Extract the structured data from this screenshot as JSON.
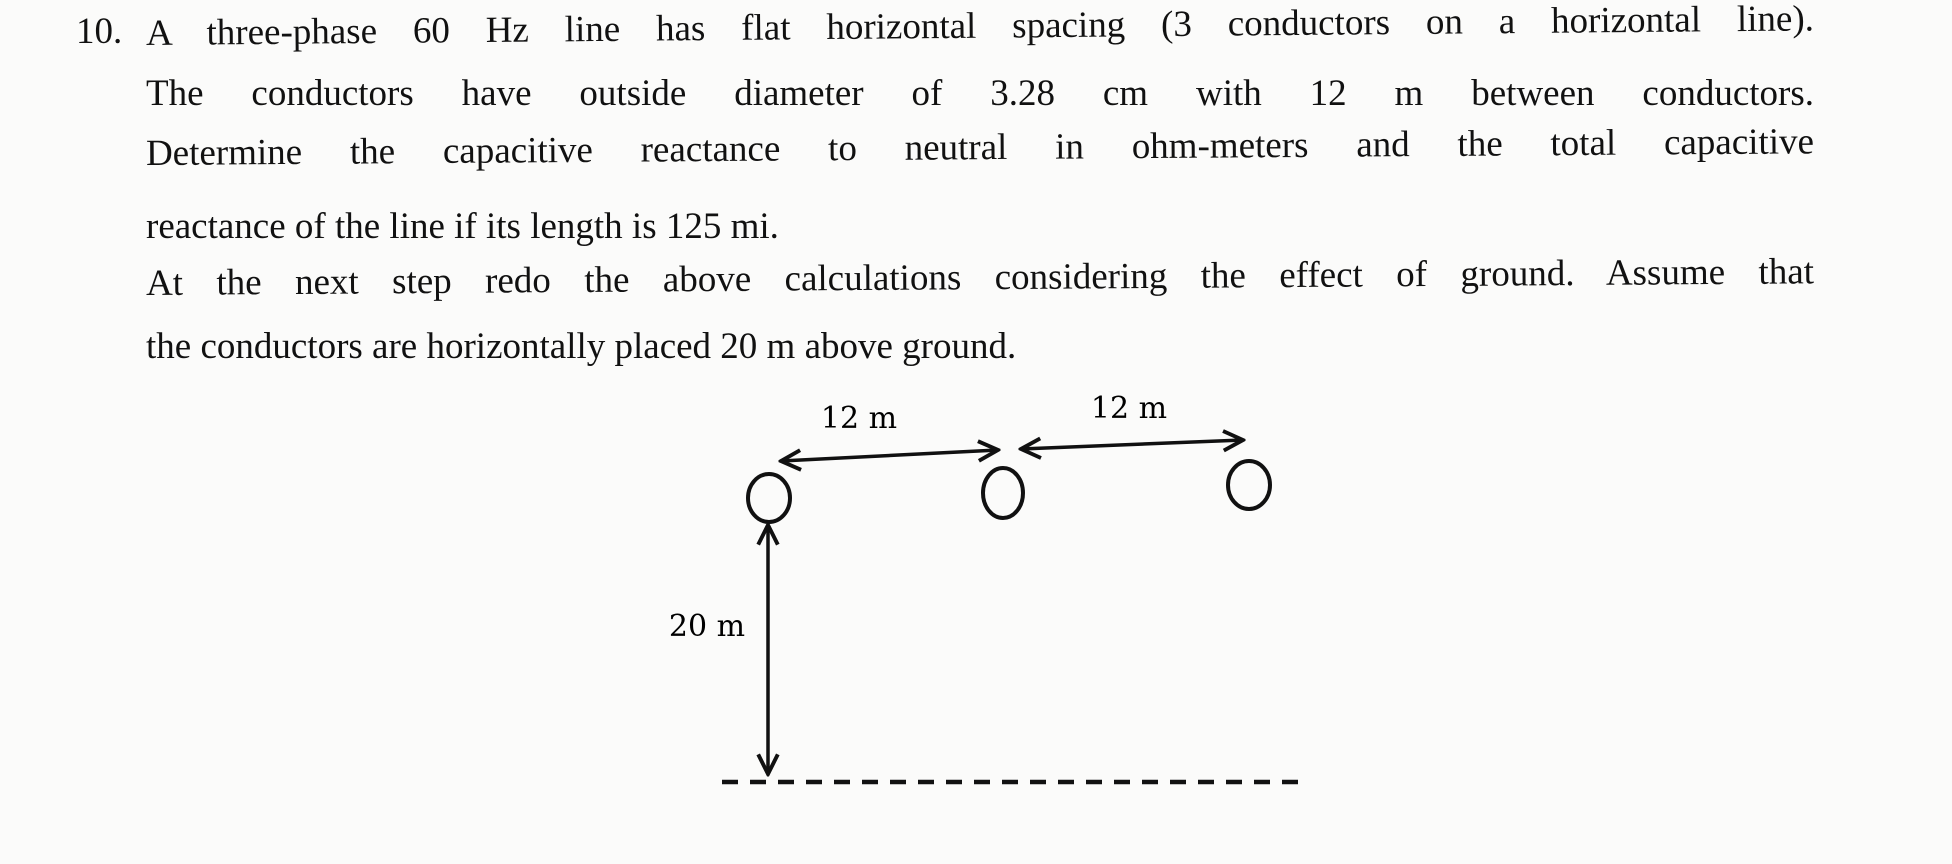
{
  "problem": {
    "number": "10.",
    "lines": [
      "A three-phase 60 Hz line has flat horizontal spacing (3 conductors on a horizontal line).",
      "The conductors have outside diameter of 3.28 cm with 12 m between conductors.",
      "Determine the capacitive reactance to neutral in ohm-meters and the total capacitive",
      "reactance of the line if its length is 125 mi.",
      "At the next step redo the above calculations considering the effect of ground. Assume that",
      "the conductors are horizontally placed 20 m above ground."
    ]
  },
  "diagram": {
    "spacing_label_1": "12 m",
    "spacing_label_2": "12 m",
    "height_label": "20 m"
  }
}
